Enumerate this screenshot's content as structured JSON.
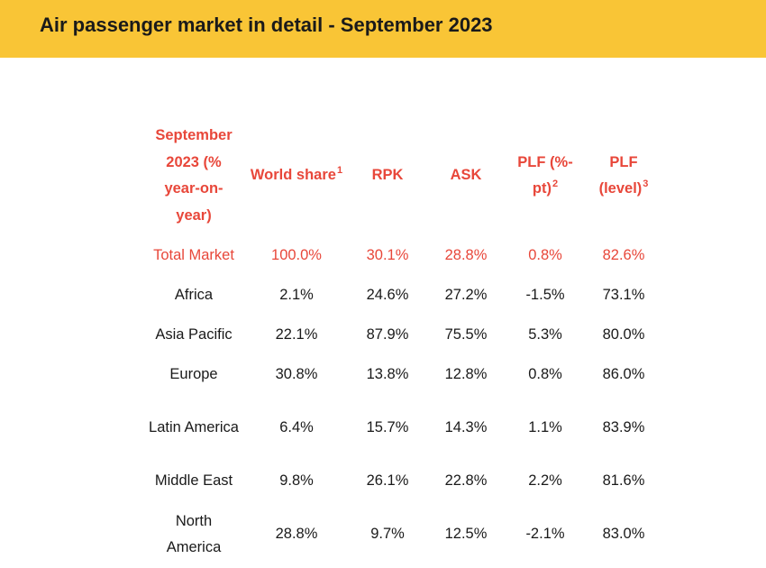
{
  "page": {
    "title": "Air passenger market in detail - September 2023"
  },
  "table": {
    "headers": {
      "region": "September 2023 (% year-on-year)",
      "world_share": "World share",
      "world_share_note": "1",
      "rpk": "RPK",
      "ask": "ASK",
      "plf_change": "PLF (%-pt)",
      "plf_change_note": "2",
      "plf_level": "PLF (level)",
      "plf_level_note": "3"
    },
    "rows": [
      {
        "region": "Total Market",
        "world_share": "100.0%",
        "rpk": "30.1%",
        "ask": "28.8%",
        "plf_change": "0.8%",
        "plf_level": "82.6%"
      },
      {
        "region": "Africa",
        "world_share": "2.1%",
        "rpk": "24.6%",
        "ask": "27.2%",
        "plf_change": "-1.5%",
        "plf_level": "73.1%"
      },
      {
        "region": "Asia Pacific",
        "world_share": "22.1%",
        "rpk": "87.9%",
        "ask": "75.5%",
        "plf_change": "5.3%",
        "plf_level": "80.0%"
      },
      {
        "region": "Europe",
        "world_share": "30.8%",
        "rpk": "13.8%",
        "ask": "12.8%",
        "plf_change": "0.8%",
        "plf_level": "86.0%"
      },
      {
        "region": "Latin America",
        "world_share": "6.4%",
        "rpk": "15.7%",
        "ask": "14.3%",
        "plf_change": "1.1%",
        "plf_level": "83.9%"
      },
      {
        "region": "Middle East",
        "world_share": "9.8%",
        "rpk": "26.1%",
        "ask": "22.8%",
        "plf_change": "2.2%",
        "plf_level": "81.6%"
      },
      {
        "region": "North America",
        "world_share": "28.8%",
        "rpk": "9.7%",
        "ask": "12.5%",
        "plf_change": "-2.1%",
        "plf_level": "83.0%"
      }
    ]
  },
  "colors": {
    "header_band": "#F9C536",
    "accent_red": "#E8473A",
    "text": "#1a1a1a"
  }
}
